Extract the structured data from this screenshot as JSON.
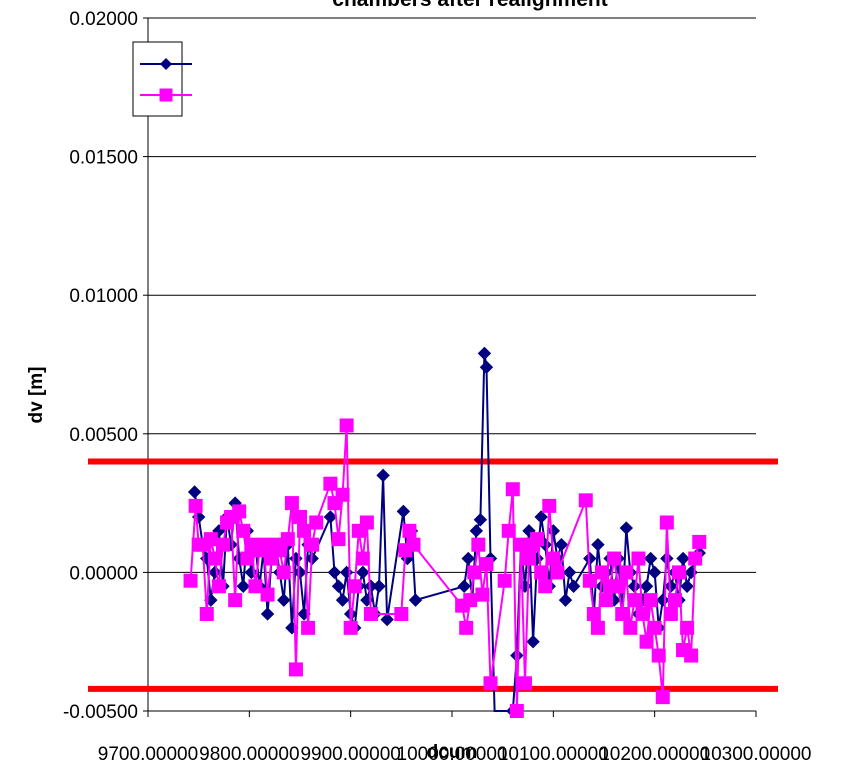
{
  "chart_data": {
    "type": "line",
    "title": "chambers after realignment",
    "xlabel": "dcum",
    "ylabel": "dv [m]",
    "xlim": [
      9700,
      10300
    ],
    "ylim": [
      -0.005,
      0.02
    ],
    "xticks": [
      9700,
      9800,
      9900,
      10000,
      10100,
      10200,
      10300
    ],
    "xtick_labels": [
      "9700.00000",
      "9800.00000",
      "9900.00000",
      "10000.00000",
      "10100.00000",
      "10200.00000",
      "10300.00000"
    ],
    "yticks": [
      -0.005,
      0,
      0.005,
      0.01,
      0.015,
      0.02
    ],
    "ytick_labels": [
      "-0.00500",
      "0.00000",
      "0.00500",
      "0.01000",
      "0.01500",
      "0.02000"
    ],
    "grid": "horizontal",
    "legend_position": "top-left",
    "reference_lines": [
      {
        "y": 0.004,
        "color": "#ff0000"
      },
      {
        "y": -0.0042,
        "color": "#ff0000"
      }
    ],
    "series": [
      {
        "marker": "diamond",
        "color": "#000080",
        "points": [
          [
            9746,
            0.0029
          ],
          [
            9750,
            0.002
          ],
          [
            9754,
            0.001
          ],
          [
            9758,
            0.0005
          ],
          [
            9762,
            -0.001
          ],
          [
            9766,
            0.0
          ],
          [
            9770,
            0.0015
          ],
          [
            9774,
            -0.0005
          ],
          [
            9778,
            0.002
          ],
          [
            9782,
            0.001
          ],
          [
            9786,
            0.0025
          ],
          [
            9790,
            0.0005
          ],
          [
            9794,
            -0.0005
          ],
          [
            9798,
            0.0015
          ],
          [
            9802,
            0.0
          ],
          [
            9806,
            0.001
          ],
          [
            9810,
            -0.0005
          ],
          [
            9814,
            0.0008
          ],
          [
            9818,
            -0.0015
          ],
          [
            9822,
            0.0005
          ],
          [
            9826,
            0.001
          ],
          [
            9830,
            0.0
          ],
          [
            9834,
            -0.001
          ],
          [
            9838,
            0.001
          ],
          [
            9842,
            -0.002
          ],
          [
            9846,
            0.0005
          ],
          [
            9850,
            0.0
          ],
          [
            9854,
            -0.0015
          ],
          [
            9858,
            0.001
          ],
          [
            9862,
            0.0005
          ],
          [
            9880,
            0.002
          ],
          [
            9884,
            0.0
          ],
          [
            9888,
            -0.0005
          ],
          [
            9892,
            -0.001
          ],
          [
            9896,
            0.0
          ],
          [
            9900,
            -0.0015
          ],
          [
            9904,
            -0.002
          ],
          [
            9908,
            -0.0005
          ],
          [
            9912,
            0.0
          ],
          [
            9916,
            -0.001
          ],
          [
            9920,
            -0.0005
          ],
          [
            9924,
            -0.0015
          ],
          [
            9928,
            -0.0005
          ],
          [
            9932,
            0.0035
          ],
          [
            9936,
            -0.0017
          ],
          [
            9952,
            0.0022
          ],
          [
            9956,
            0.0005
          ],
          [
            9960,
            0.0015
          ],
          [
            9964,
            -0.001
          ],
          [
            10012,
            -0.0005
          ],
          [
            10016,
            0.0005
          ],
          [
            10020,
            -0.001
          ],
          [
            10024,
            0.0015
          ],
          [
            10028,
            0.0019
          ],
          [
            10032,
            0.0079
          ],
          [
            10034,
            0.0074
          ],
          [
            10038,
            0.0005
          ],
          [
            10042,
            -0.0055
          ],
          [
            10060,
            -0.005
          ],
          [
            10064,
            -0.003
          ],
          [
            10068,
            0.001
          ],
          [
            10072,
            -0.0005
          ],
          [
            10076,
            0.0015
          ],
          [
            10080,
            -0.0025
          ],
          [
            10084,
            0.0005
          ],
          [
            10088,
            0.002
          ],
          [
            10092,
            0.001
          ],
          [
            10096,
            -0.0005
          ],
          [
            10100,
            0.0015
          ],
          [
            10104,
            0.0005
          ],
          [
            10108,
            0.001
          ],
          [
            10112,
            -0.001
          ],
          [
            10116,
            0.0
          ],
          [
            10120,
            -0.0005
          ],
          [
            10136,
            0.0005
          ],
          [
            10140,
            -0.0015
          ],
          [
            10144,
            0.001
          ],
          [
            10148,
            -0.0005
          ],
          [
            10152,
            0.0
          ],
          [
            10156,
            0.0005
          ],
          [
            10160,
            -0.001
          ],
          [
            10164,
            0.0005
          ],
          [
            10168,
            -0.0015
          ],
          [
            10172,
            0.0016
          ],
          [
            10176,
            0.0
          ],
          [
            10180,
            -0.0005
          ],
          [
            10184,
            -0.0015
          ],
          [
            10188,
            -0.001
          ],
          [
            10192,
            -0.0005
          ],
          [
            10196,
            0.0005
          ],
          [
            10200,
            0.0
          ],
          [
            10204,
            -0.002
          ],
          [
            10208,
            -0.001
          ],
          [
            10212,
            0.0005
          ],
          [
            10216,
            -0.0005
          ],
          [
            10220,
            0.0
          ],
          [
            10224,
            -0.001
          ],
          [
            10228,
            0.0005
          ],
          [
            10232,
            -0.0005
          ],
          [
            10236,
            0.0
          ],
          [
            10240,
            0.0005
          ],
          [
            10244,
            0.0007
          ]
        ]
      },
      {
        "marker": "square",
        "color": "#ff00ff",
        "points": [
          [
            9742,
            -0.0003
          ],
          [
            9747,
            0.0024
          ],
          [
            9750,
            0.001
          ],
          [
            9754,
            0.001
          ],
          [
            9758,
            -0.0015
          ],
          [
            9762,
            0.0012
          ],
          [
            9766,
            0.0005
          ],
          [
            9770,
            -0.0005
          ],
          [
            9774,
            0.001
          ],
          [
            9778,
            0.0018
          ],
          [
            9782,
            0.002
          ],
          [
            9786,
            -0.001
          ],
          [
            9790,
            0.0022
          ],
          [
            9794,
            0.0015
          ],
          [
            9798,
            0.0005
          ],
          [
            9802,
            0.001
          ],
          [
            9806,
            -0.0005
          ],
          [
            9810,
            0.0008
          ],
          [
            9814,
            0.001
          ],
          [
            9818,
            -0.0008
          ],
          [
            9822,
            0.0005
          ],
          [
            9826,
            0.001
          ],
          [
            9830,
            0.0008
          ],
          [
            9834,
            0.0
          ],
          [
            9838,
            0.0012
          ],
          [
            9842,
            0.0025
          ],
          [
            9846,
            -0.0035
          ],
          [
            9850,
            0.002
          ],
          [
            9854,
            0.0015
          ],
          [
            9858,
            -0.002
          ],
          [
            9862,
            0.001
          ],
          [
            9866,
            0.0018
          ],
          [
            9880,
            0.0032
          ],
          [
            9884,
            0.0025
          ],
          [
            9888,
            0.0012
          ],
          [
            9892,
            0.0028
          ],
          [
            9896,
            0.0053
          ],
          [
            9900,
            -0.002
          ],
          [
            9904,
            -0.0005
          ],
          [
            9908,
            0.0015
          ],
          [
            9912,
            0.0005
          ],
          [
            9916,
            0.0018
          ],
          [
            9920,
            -0.0015
          ],
          [
            9950,
            -0.0015
          ],
          [
            9954,
            0.0008
          ],
          [
            9958,
            0.0015
          ],
          [
            9962,
            0.001
          ],
          [
            10010,
            -0.0012
          ],
          [
            10014,
            -0.002
          ],
          [
            10018,
            -0.001
          ],
          [
            10022,
            0.0
          ],
          [
            10026,
            0.001
          ],
          [
            10030,
            -0.0008
          ],
          [
            10034,
            0.0003
          ],
          [
            10038,
            -0.004
          ],
          [
            10052,
            -0.0003
          ],
          [
            10056,
            0.0015
          ],
          [
            10060,
            0.003
          ],
          [
            10064,
            -0.005
          ],
          [
            10068,
            0.001
          ],
          [
            10072,
            -0.004
          ],
          [
            10076,
            0.0005
          ],
          [
            10080,
            0.001
          ],
          [
            10084,
            0.0012
          ],
          [
            10088,
            0.0
          ],
          [
            10092,
            -0.0005
          ],
          [
            10096,
            0.0024
          ],
          [
            10100,
            0.0005
          ],
          [
            10104,
            0.0
          ],
          [
            10132,
            0.0026
          ],
          [
            10136,
            -0.0003
          ],
          [
            10140,
            -0.0015
          ],
          [
            10144,
            -0.002
          ],
          [
            10148,
            0.0
          ],
          [
            10152,
            -0.001
          ],
          [
            10156,
            -0.0005
          ],
          [
            10160,
            0.0005
          ],
          [
            10164,
            -0.0005
          ],
          [
            10168,
            -0.0015
          ],
          [
            10172,
            0.0
          ],
          [
            10176,
            -0.002
          ],
          [
            10180,
            -0.001
          ],
          [
            10184,
            0.0005
          ],
          [
            10188,
            -0.0015
          ],
          [
            10192,
            -0.0025
          ],
          [
            10196,
            -0.001
          ],
          [
            10200,
            -0.002
          ],
          [
            10204,
            -0.003
          ],
          [
            10208,
            -0.0045
          ],
          [
            10212,
            0.0018
          ],
          [
            10216,
            -0.0015
          ],
          [
            10220,
            -0.001
          ],
          [
            10224,
            0.0
          ],
          [
            10228,
            -0.0028
          ],
          [
            10232,
            -0.002
          ],
          [
            10236,
            -0.003
          ],
          [
            10240,
            0.0005
          ],
          [
            10244,
            0.0011
          ]
        ]
      }
    ]
  }
}
